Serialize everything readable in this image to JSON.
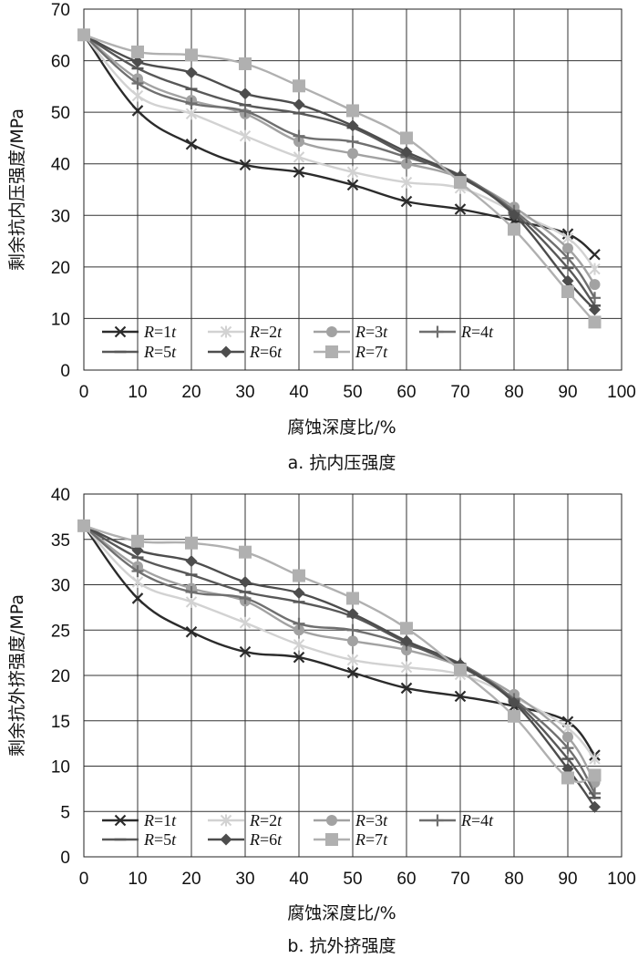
{
  "colors": {
    "R=1t": "#2b2b2b",
    "R=2t": "#d2d2d2",
    "R=3t": "#a2a2a2",
    "R=4t": "#6f6f6f",
    "R=5t": "#585858",
    "R=6t": "#4d4d4d",
    "R=7t": "#b0b0b0"
  },
  "chart_data": [
    {
      "type": "line",
      "caption": "a. 抗内压强度",
      "xlabel": "腐蚀深度比/%",
      "ylabel": "剩余抗内压强度/MPa",
      "xlim": [
        0,
        100
      ],
      "ylim": [
        0,
        70
      ],
      "xticks": [
        "0",
        "10",
        "20",
        "30",
        "40",
        "50",
        "60",
        "70",
        "80",
        "90",
        "100"
      ],
      "yticks": [
        "0",
        "10",
        "20",
        "30",
        "40",
        "50",
        "60",
        "70"
      ],
      "grid": true,
      "legend_position": "bottom-left",
      "x": [
        0,
        10,
        20,
        30,
        40,
        50,
        60,
        70,
        80,
        90,
        95
      ],
      "series": [
        {
          "name": "R=1t",
          "marker": "x",
          "values": [
            65,
            50.3,
            43.8,
            39.8,
            38.4,
            35.9,
            32.7,
            31.2,
            29,
            26.4,
            22.4
          ]
        },
        {
          "name": "R=2t",
          "marker": "star",
          "values": [
            65,
            53.2,
            49.7,
            45.4,
            41.3,
            38.4,
            36.4,
            35.3,
            30.7,
            25.6,
            19.6
          ]
        },
        {
          "name": "R=3t",
          "marker": "circle",
          "values": [
            65,
            56.5,
            52.3,
            49.7,
            44.3,
            42,
            40,
            37.3,
            31.6,
            23.6,
            16.6
          ]
        },
        {
          "name": "R=4t",
          "marker": "plus",
          "values": [
            65,
            55.6,
            51.7,
            50.2,
            45.4,
            44.3,
            41.3,
            37.8,
            30.9,
            21.7,
            14
          ]
        },
        {
          "name": "R=5t",
          "marker": "dash",
          "values": [
            65,
            58.5,
            54.5,
            51.4,
            49.8,
            47,
            41.8,
            37.4,
            30.5,
            19.8,
            12.5
          ]
        },
        {
          "name": "R=6t",
          "marker": "diamond",
          "values": [
            65,
            59.8,
            57.7,
            53.6,
            51.5,
            47.4,
            42.3,
            37.6,
            30.1,
            17.3,
            11.7
          ]
        },
        {
          "name": "R=7t",
          "marker": "square",
          "values": [
            65,
            61.7,
            61.1,
            59.4,
            55.1,
            50.3,
            45,
            36.4,
            27.3,
            15.2,
            9.3
          ]
        }
      ]
    },
    {
      "type": "line",
      "caption": "b. 抗外挤强度",
      "xlabel": "腐蚀深度比/%",
      "ylabel": "剩余抗外挤强度/MPa",
      "xlim": [
        0,
        100
      ],
      "ylim": [
        0,
        40
      ],
      "xticks": [
        "0",
        "10",
        "20",
        "30",
        "40",
        "50",
        "60",
        "70",
        "80",
        "90",
        "100"
      ],
      "yticks": [
        "0",
        "5",
        "10",
        "15",
        "20",
        "25",
        "30",
        "35",
        "40"
      ],
      "grid": true,
      "legend_position": "bottom-left",
      "x": [
        0,
        10,
        20,
        30,
        40,
        50,
        60,
        70,
        80,
        90,
        95
      ],
      "series": [
        {
          "name": "R=1t",
          "marker": "x",
          "values": [
            36.5,
            28.5,
            24.8,
            22.6,
            22,
            20.3,
            18.6,
            17.7,
            16.6,
            14.9,
            11.2
          ]
        },
        {
          "name": "R=2t",
          "marker": "star",
          "values": [
            36.5,
            30.3,
            28.1,
            25.8,
            23.4,
            21.7,
            20.9,
            20.1,
            17.6,
            14.2,
            10.8
          ]
        },
        {
          "name": "R=3t",
          "marker": "circle",
          "values": [
            36.5,
            32,
            29.6,
            28.2,
            25,
            23.8,
            22.8,
            21,
            17.9,
            13.2,
            8.2
          ]
        },
        {
          "name": "R=4t",
          "marker": "plus",
          "values": [
            36.5,
            31.5,
            29.2,
            28.5,
            25.7,
            25,
            23.4,
            21.3,
            17.4,
            12,
            7
          ]
        },
        {
          "name": "R=5t",
          "marker": "dash",
          "values": [
            36.5,
            33,
            31.1,
            29.2,
            28.1,
            26.5,
            23.6,
            21,
            17.2,
            10.8,
            6.5
          ]
        },
        {
          "name": "R=6t",
          "marker": "diamond",
          "values": [
            36.5,
            33.8,
            32.6,
            30.3,
            29.1,
            26.8,
            23.8,
            21.2,
            17,
            9.7,
            5.5
          ]
        },
        {
          "name": "R=7t",
          "marker": "square",
          "values": [
            36.5,
            34.8,
            34.6,
            33.6,
            31,
            28.5,
            25.2,
            20.6,
            15.5,
            8.7,
            9
          ]
        }
      ]
    }
  ]
}
